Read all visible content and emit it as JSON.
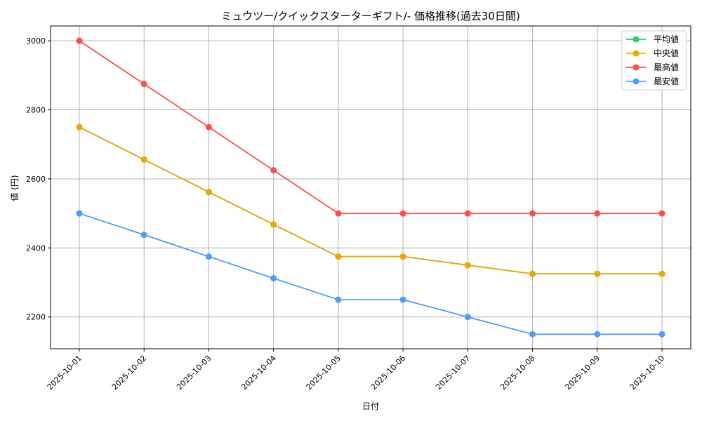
{
  "chart_data": {
    "type": "line",
    "title": "ミュウツー/クイックスターターギフト/- 価格推移(過去30日間)",
    "xlabel": "日付",
    "ylabel": "値 (円)",
    "categories": [
      "2025-10-01",
      "2025-10-02",
      "2025-10-03",
      "2025-10-04",
      "2025-10-05",
      "2025-10-06",
      "2025-10-07",
      "2025-10-08",
      "2025-10-09",
      "2025-10-10"
    ],
    "yticks": [
      2200,
      2400,
      2600,
      2800,
      3000
    ],
    "ylim": [
      2108,
      3043
    ],
    "grid": true,
    "legend_position": "top-right",
    "series": [
      {
        "name": "平均値",
        "color": "#2ecc71",
        "values": [
          2750,
          2656,
          2562,
          2468,
          2375,
          2375,
          2350,
          2325,
          2325,
          2325
        ]
      },
      {
        "name": "中央値",
        "color": "#f0a500",
        "values": [
          2750,
          2656,
          2562,
          2468,
          2375,
          2375,
          2350,
          2325,
          2325,
          2325
        ]
      },
      {
        "name": "最高値",
        "color": "#ff4d4d",
        "values": [
          3000,
          2875,
          2750,
          2625,
          2500,
          2500,
          2500,
          2500,
          2500,
          2500
        ]
      },
      {
        "name": "最安値",
        "color": "#4d9bff",
        "values": [
          2500,
          2438,
          2375,
          2312,
          2250,
          2250,
          2200,
          2150,
          2150,
          2150
        ]
      }
    ]
  }
}
